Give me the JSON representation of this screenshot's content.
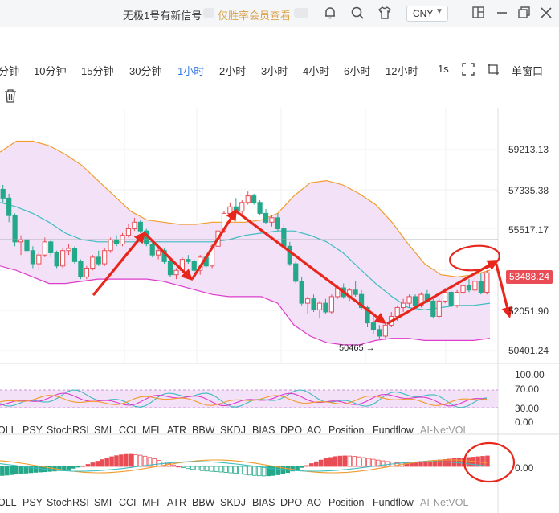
{
  "header": {
    "title": "无极1号有新信号",
    "vip_link": "仅胜率会员查看",
    "currency": "CNY",
    "icons": [
      "bell-icon",
      "search-icon",
      "shirt-icon",
      "currency-dropdown",
      "external-window-icon",
      "minimize-icon",
      "restore-window-icon",
      "close-icon"
    ]
  },
  "timeframes": {
    "items": [
      "分钟",
      "10分钟",
      "15分钟",
      "30分钟",
      "1小时",
      "2小时",
      "3小时",
      "4小时",
      "6小时",
      "12小时",
      "1s"
    ],
    "active": "1小时",
    "window_label": "单窗口"
  },
  "main_chart": {
    "y_labels": [
      "59213.13",
      "57335.38",
      "55517.17",
      "53488.24",
      "52051.90",
      "50401.24"
    ],
    "current_price": "53488.24",
    "low_callout": "50465"
  },
  "indicators_row_1": [
    "OLL",
    "PSY",
    "StochRSI",
    "SMI",
    "CCI",
    "MFI",
    "ATR",
    "BBW",
    "SKDJ",
    "BIAS",
    "DPO",
    "AO",
    "Position",
    "Fundflow",
    "AI-NetVOL"
  ],
  "indicators_row_2": [
    "OLL",
    "PSY",
    "StochRSI",
    "SMI",
    "CCI",
    "MFI",
    "ATR",
    "BBW",
    "SKDJ",
    "BIAS",
    "DPO",
    "AO",
    "Position",
    "Fundflow",
    "AI-NetVOL"
  ],
  "oscillator_panel": {
    "y_labels": [
      "100.00",
      "70.00",
      "30.00",
      "0.00"
    ]
  },
  "ao_panel": {
    "y_labels": [
      "0.00"
    ]
  },
  "chart_data": {
    "type": "candlestick",
    "interval": "1小时",
    "ylim": [
      49800,
      60500
    ],
    "candles": [
      [
        57300,
        57500,
        56700,
        56900
      ],
      [
        56900,
        57100,
        55800,
        56100
      ],
      [
        56100,
        56200,
        54700,
        54900
      ],
      [
        54900,
        55200,
        54300,
        55000
      ],
      [
        55000,
        55300,
        54200,
        54500
      ],
      [
        54500,
        54700,
        53700,
        53900
      ],
      [
        53900,
        54400,
        53600,
        54300
      ],
      [
        54300,
        55100,
        54200,
        54900
      ],
      [
        54900,
        55000,
        54200,
        54400
      ],
      [
        54400,
        54500,
        53700,
        53800
      ],
      [
        53800,
        54600,
        53700,
        54500
      ],
      [
        54500,
        54800,
        54300,
        54600
      ],
      [
        54600,
        54700,
        53900,
        54000
      ],
      [
        54000,
        54100,
        53200,
        53300
      ],
      [
        53300,
        53800,
        53200,
        53700
      ],
      [
        53700,
        54300,
        53600,
        54200
      ],
      [
        54200,
        54500,
        53800,
        53900
      ],
      [
        53900,
        54600,
        53800,
        54500
      ],
      [
        54500,
        55100,
        54400,
        55000
      ],
      [
        55000,
        55200,
        54700,
        54800
      ],
      [
        54800,
        55300,
        54700,
        55200
      ],
      [
        55200,
        55700,
        55100,
        55500
      ],
      [
        55500,
        56000,
        55400,
        55800
      ],
      [
        55800,
        55900,
        55300,
        55400
      ],
      [
        55400,
        55500,
        54700,
        54800
      ],
      [
        54800,
        55000,
        54200,
        54300
      ],
      [
        54300,
        54600,
        54100,
        54500
      ],
      [
        54500,
        54600,
        53900,
        54000
      ],
      [
        54000,
        54200,
        53300,
        53400
      ],
      [
        53400,
        53700,
        53200,
        53600
      ],
      [
        53600,
        54200,
        53500,
        54100
      ],
      [
        54100,
        54300,
        53900,
        54000
      ],
      [
        54000,
        54100,
        53500,
        53600
      ],
      [
        53600,
        54300,
        53400,
        54200
      ],
      [
        54200,
        54400,
        53700,
        53800
      ],
      [
        53800,
        54800,
        53700,
        54700
      ],
      [
        54700,
        55500,
        54600,
        55400
      ],
      [
        55400,
        56300,
        55300,
        56200
      ],
      [
        56200,
        56700,
        56000,
        56500
      ],
      [
        56500,
        56900,
        56200,
        56300
      ],
      [
        56300,
        56800,
        56100,
        56700
      ],
      [
        56700,
        57200,
        56600,
        57000
      ],
      [
        57000,
        57100,
        56600,
        56700
      ],
      [
        56700,
        56800,
        56100,
        56200
      ],
      [
        56200,
        56400,
        55700,
        55800
      ],
      [
        55800,
        56100,
        55600,
        56000
      ],
      [
        56000,
        56200,
        55400,
        55500
      ],
      [
        55500,
        55700,
        54600,
        54700
      ],
      [
        54700,
        54900,
        53800,
        53900
      ],
      [
        53900,
        54000,
        53000,
        53100
      ],
      [
        53100,
        53300,
        52000,
        52100
      ],
      [
        52100,
        52400,
        51600,
        52300
      ],
      [
        52300,
        52500,
        51700,
        51800
      ],
      [
        51800,
        52200,
        51400,
        52100
      ],
      [
        52100,
        52300,
        51600,
        51700
      ],
      [
        51700,
        52500,
        51600,
        52400
      ],
      [
        52400,
        52900,
        52300,
        52800
      ],
      [
        52800,
        53000,
        52300,
        52400
      ],
      [
        52400,
        52800,
        52200,
        52700
      ],
      [
        52700,
        53100,
        52400,
        52500
      ],
      [
        52500,
        52700,
        51800,
        51900
      ],
      [
        51900,
        52000,
        51000,
        51200
      ],
      [
        51200,
        51500,
        50700,
        50900
      ],
      [
        50900,
        51100,
        50465,
        50600
      ],
      [
        50600,
        51200,
        50500,
        51100
      ],
      [
        51100,
        51700,
        51000,
        51500
      ],
      [
        51500,
        52000,
        51300,
        51900
      ],
      [
        51900,
        52300,
        51700,
        52100
      ],
      [
        52100,
        52500,
        51900,
        52400
      ],
      [
        52400,
        52500,
        51900,
        52000
      ],
      [
        52000,
        52600,
        51900,
        52500
      ],
      [
        52500,
        52700,
        52100,
        52200
      ],
      [
        52200,
        52300,
        51400,
        51500
      ],
      [
        51500,
        52300,
        51400,
        52200
      ],
      [
        52200,
        52800,
        52100,
        52600
      ],
      [
        52600,
        52700,
        51900,
        52000
      ],
      [
        52000,
        52700,
        51900,
        52600
      ],
      [
        52600,
        53100,
        52400,
        52900
      ],
      [
        52900,
        53200,
        52600,
        52700
      ],
      [
        52700,
        53300,
        52600,
        53100
      ],
      [
        53100,
        53500,
        52500,
        52600
      ],
      [
        52600,
        53600,
        52500,
        53488
      ]
    ],
    "bollinger": {
      "upper": [
        59000,
        59500,
        59500,
        59300,
        58900,
        58400,
        57700,
        57000,
        56300,
        55900,
        55800,
        55700,
        55700,
        55800,
        55800,
        55800,
        55900,
        56200,
        57000,
        57600,
        57700,
        57500,
        57100,
        56600,
        55800,
        54800,
        53900,
        53400,
        53300,
        53400,
        53600
      ],
      "mid": [
        56700,
        56500,
        56200,
        55800,
        55300,
        55000,
        54900,
        54900,
        54900,
        54900,
        54900,
        54900,
        54900,
        54900,
        55000,
        55200,
        55300,
        55400,
        55400,
        55200,
        54900,
        54400,
        53700,
        53000,
        52400,
        51900,
        51800,
        51900,
        52000,
        52000,
        52100
      ],
      "lower": [
        53800,
        53600,
        53300,
        53000,
        53000,
        53100,
        53200,
        53200,
        53200,
        53200,
        53100,
        52900,
        52700,
        52500,
        52400,
        52400,
        52400,
        52100,
        51100,
        50600,
        50300,
        50200,
        50200,
        50400,
        50500,
        50500,
        50400,
        50400,
        50400,
        50400,
        50500
      ]
    },
    "annotations": [
      "red arrow up",
      "red arrow down",
      "red arrow up",
      "red arrow down",
      "red arrow up",
      "red arrow down",
      "red ellipse",
      "red ellipse"
    ]
  },
  "colors": {
    "up": "#ea4c55",
    "down": "#23a88a",
    "band_fill": "#f3e1f8",
    "upper_band": "#f39c2e",
    "mid_band": "#3cbcc0",
    "lower_band": "#dd3ccb",
    "annotation": "#e8261c",
    "accent": "#3a7ce5"
  }
}
